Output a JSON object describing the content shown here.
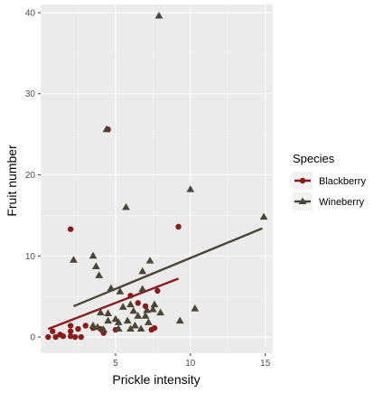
{
  "chart_data": {
    "type": "scatter",
    "xlabel": "Prickle intensity",
    "ylabel": "Fruit number",
    "xlim": [
      0,
      15.5
    ],
    "ylim": [
      -2,
      41
    ],
    "x_ticks": [
      5,
      10,
      15
    ],
    "y_ticks": [
      0,
      10,
      20,
      30,
      40
    ],
    "x_tick_labels": [
      "5",
      "10",
      "15"
    ],
    "y_tick_labels": [
      "0",
      "10",
      "20",
      "30",
      "40"
    ],
    "grid": true,
    "legend": {
      "title": "Species",
      "position": "right"
    },
    "series": [
      {
        "name": "Blackberry",
        "color": "#8B1A1A",
        "marker": "circle",
        "points": [
          [
            0.5,
            0
          ],
          [
            0.8,
            0.7
          ],
          [
            1.0,
            0
          ],
          [
            1.3,
            0.3
          ],
          [
            1.5,
            0.1
          ],
          [
            2.0,
            1.4
          ],
          [
            2.0,
            0.7
          ],
          [
            2.0,
            0.1
          ],
          [
            2.3,
            0
          ],
          [
            2.5,
            1.0
          ],
          [
            2.7,
            0
          ],
          [
            3.0,
            1.4
          ],
          [
            2.0,
            13.3
          ],
          [
            3.5,
            1.1
          ],
          [
            4.0,
            1.0
          ],
          [
            4.2,
            0.5
          ],
          [
            4.5,
            25.6
          ],
          [
            5.0,
            0.9
          ],
          [
            6.0,
            5.1
          ],
          [
            6.5,
            4.2
          ],
          [
            7.0,
            3.8
          ],
          [
            7.4,
            0.9
          ],
          [
            7.6,
            1.1
          ],
          [
            7.8,
            5.7
          ],
          [
            9.2,
            13.6
          ]
        ],
        "trend": {
          "x": [
            0.5,
            9.2
          ],
          "y": [
            1.0,
            7.2
          ]
        }
      },
      {
        "name": "Wineberry",
        "color": "#4A4535",
        "marker": "triangle",
        "points": [
          [
            2.2,
            9.5
          ],
          [
            3.5,
            10.0
          ],
          [
            3.7,
            8.7
          ],
          [
            3.9,
            7.6
          ],
          [
            3.5,
            1.4
          ],
          [
            3.8,
            1.2
          ],
          [
            4.2,
            0.9
          ],
          [
            4.5,
            2.9
          ],
          [
            4.5,
            2.0
          ],
          [
            4.7,
            6.0
          ],
          [
            5.0,
            2.2
          ],
          [
            5.2,
            1.8
          ],
          [
            5.2,
            1.0
          ],
          [
            5.3,
            5.6
          ],
          [
            5.5,
            3.7
          ],
          [
            5.7,
            16.0
          ],
          [
            5.8,
            2.0
          ],
          [
            6.0,
            4.0
          ],
          [
            6.2,
            3.2
          ],
          [
            6.3,
            1.4
          ],
          [
            6.5,
            2.6
          ],
          [
            6.7,
            1.0
          ],
          [
            6.8,
            5.9
          ],
          [
            6.8,
            8.1
          ],
          [
            7.0,
            2.6
          ],
          [
            7.1,
            3.3
          ],
          [
            7.2,
            1.8
          ],
          [
            7.3,
            9.4
          ],
          [
            7.5,
            3.4
          ],
          [
            7.6,
            4.0
          ],
          [
            7.9,
            39.6
          ],
          [
            8.0,
            3.0
          ],
          [
            9.3,
            2.0
          ],
          [
            10.0,
            18.2
          ],
          [
            10.3,
            3.5
          ],
          [
            14.9,
            14.8
          ],
          [
            4.4,
            25.6
          ],
          [
            6.0,
            1.0
          ],
          [
            4.0,
            3.0
          ]
        ],
        "trend": {
          "x": [
            2.2,
            14.8
          ],
          "y": [
            3.8,
            13.4
          ]
        }
      }
    ]
  }
}
